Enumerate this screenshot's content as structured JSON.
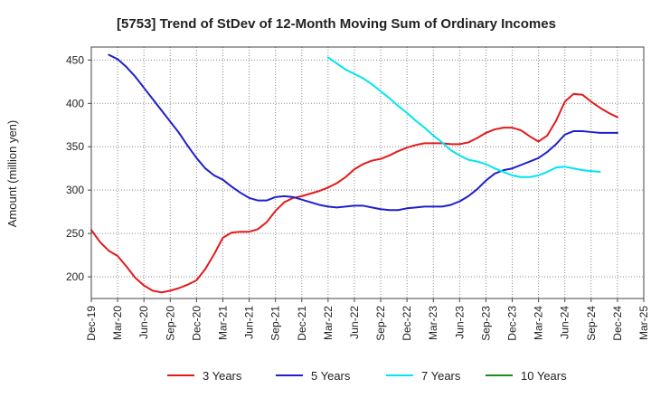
{
  "chart_data": {
    "type": "line",
    "title": "[5753]  Trend of StDev of 12-Month Moving Sum of Ordinary Incomes",
    "xlabel": "",
    "ylabel": "Amount (million yen)",
    "ylim": [
      175,
      465
    ],
    "yticks": [
      200,
      250,
      300,
      350,
      400,
      450
    ],
    "x_tick_labels": [
      "Dec-19",
      "Mar-20",
      "Jun-20",
      "Sep-20",
      "Dec-20",
      "Mar-21",
      "Jun-21",
      "Sep-21",
      "Dec-21",
      "Mar-22",
      "Jun-22",
      "Sep-22",
      "Dec-22",
      "Mar-23",
      "Jun-23",
      "Sep-23",
      "Dec-23",
      "Mar-24",
      "Jun-24",
      "Sep-24",
      "Dec-24",
      "Mar-25"
    ],
    "x_start": "Dec-19",
    "grid": true,
    "legend_position": "bottom",
    "series": [
      {
        "name": "3 Years",
        "color": "#e31a1c",
        "start_month_index": 0,
        "values": [
          254,
          240,
          230,
          224,
          212,
          199,
          190,
          184,
          182,
          184,
          187,
          191,
          196,
          209,
          226,
          245,
          251,
          252,
          252,
          255,
          263,
          276,
          286,
          291,
          293,
          296,
          299,
          303,
          308,
          315,
          324,
          330,
          334,
          336,
          340,
          345,
          349,
          352,
          354,
          354,
          354,
          353,
          353,
          355,
          360,
          366,
          370,
          372,
          372,
          369,
          362,
          356,
          363,
          380,
          402,
          411,
          410,
          402,
          395,
          389,
          384
        ]
      },
      {
        "name": "5 Years",
        "color": "#1f1fcc",
        "start_month_index": 2,
        "values": [
          456,
          451,
          442,
          431,
          418,
          405,
          392,
          379,
          366,
          351,
          337,
          325,
          317,
          312,
          304,
          297,
          291,
          288,
          288,
          292,
          293,
          292,
          289,
          286,
          283,
          281,
          280,
          281,
          282,
          282,
          280,
          278,
          277,
          277,
          279,
          280,
          281,
          281,
          281,
          283,
          287,
          293,
          301,
          311,
          319,
          323,
          325,
          329,
          333,
          337,
          344,
          353,
          364,
          368,
          368,
          367,
          366,
          366,
          366
        ]
      },
      {
        "name": "7 Years",
        "color": "#00e5ee",
        "start_month_index": 27,
        "values": [
          453,
          446,
          439,
          434,
          429,
          422,
          414,
          406,
          397,
          389,
          380,
          372,
          363,
          355,
          346,
          340,
          335,
          333,
          330,
          325,
          321,
          317,
          315,
          315,
          317,
          321,
          326,
          327,
          325,
          323,
          322,
          321
        ]
      },
      {
        "name": "10 Years",
        "color": "#1b8a1b",
        "start_month_index": 0,
        "values": []
      }
    ]
  }
}
